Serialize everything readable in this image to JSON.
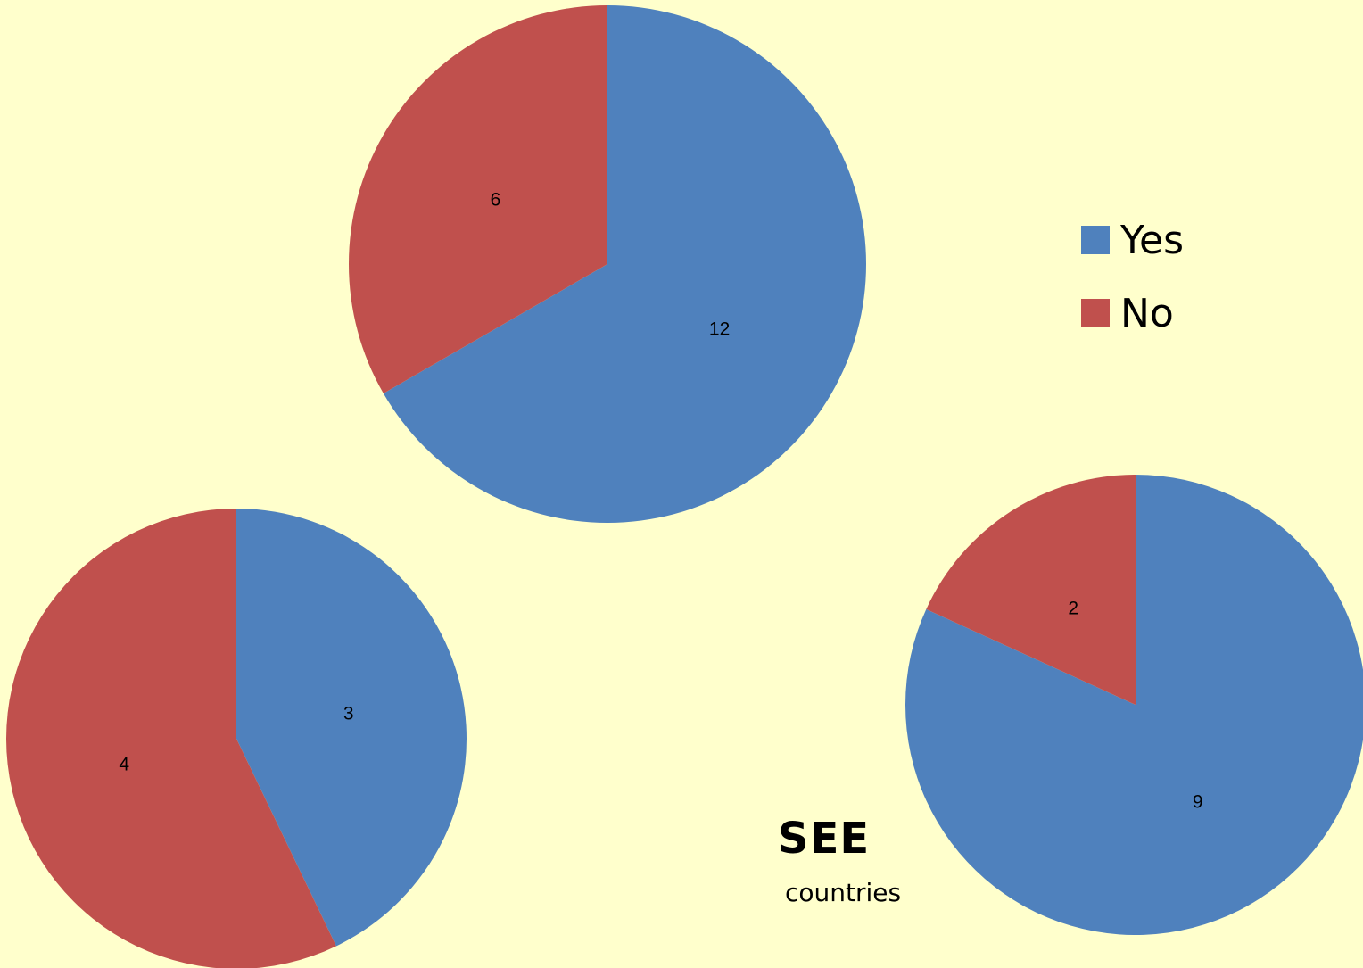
{
  "colors": {
    "yes": "#4f81bd",
    "no": "#c0504d",
    "background": "#ffffcc"
  },
  "legend": {
    "items": [
      {
        "label": "Yes",
        "color": "#4f81bd"
      },
      {
        "label": "No",
        "color": "#c0504d"
      }
    ]
  },
  "caption": {
    "title": "SEE",
    "subtitle": "countries"
  },
  "chart_data": [
    {
      "type": "pie",
      "title": "",
      "categories": [
        "Yes",
        "No"
      ],
      "values": [
        12,
        6
      ],
      "legend": "right"
    },
    {
      "type": "pie",
      "title": "",
      "categories": [
        "Yes",
        "No"
      ],
      "values": [
        3,
        4
      ]
    },
    {
      "type": "pie",
      "title": "",
      "categories": [
        "Yes",
        "No"
      ],
      "values": [
        9,
        2
      ]
    }
  ]
}
